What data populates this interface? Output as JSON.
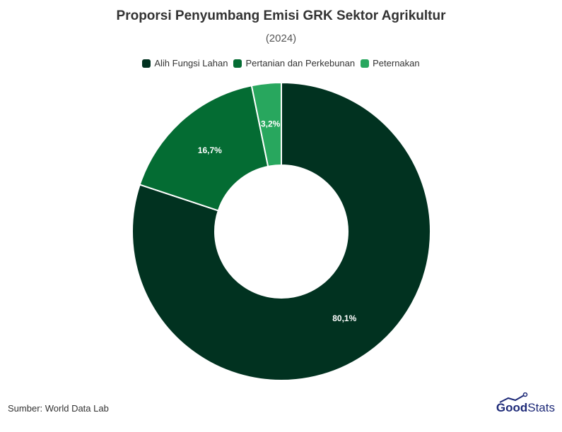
{
  "header": {
    "title": "Proporsi Penyumbang Emisi GRK Sektor Agrikultur",
    "subtitle": "(2024)"
  },
  "legend": {
    "items": [
      {
        "label": "Alih Fungsi Lahan",
        "color": "#013220"
      },
      {
        "label": "Pertanian dan Perkebunan",
        "color": "#046C33"
      },
      {
        "label": "Peternakan",
        "color": "#28A75E"
      }
    ]
  },
  "chart_data": {
    "type": "pie",
    "variant": "donut",
    "title": "Proporsi Penyumbang Emisi GRK Sektor Agrikultur",
    "subtitle": "(2024)",
    "legend_position": "top-center",
    "slices": [
      {
        "name": "Alih Fungsi Lahan",
        "value": 80.1,
        "label": "80,1%",
        "color": "#013220"
      },
      {
        "name": "Pertanian dan Perkebunan",
        "value": 16.7,
        "label": "16,7%",
        "color": "#046C33"
      },
      {
        "name": "Peternakan",
        "value": 3.2,
        "label": "3,2%",
        "color": "#28A75E"
      }
    ]
  },
  "footer": {
    "source": "Sumber: World Data Lab",
    "brand_bold": "Good",
    "brand_light": "Stats"
  }
}
